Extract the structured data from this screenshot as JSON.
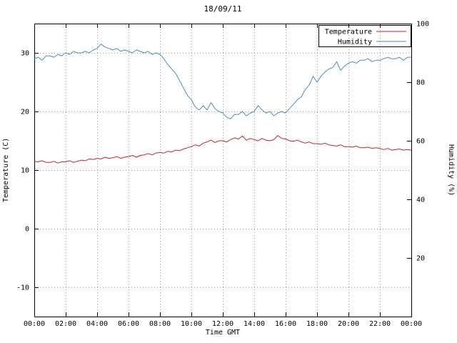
{
  "title": "18/09/11",
  "axes": {
    "x_label": "Time GMT",
    "y_left_label": "Temperature (C)",
    "y_right_label": "Humidity (%)",
    "x_tick_labels": [
      "00:00",
      "02:00",
      "04:00",
      "06:00",
      "08:00",
      "10:00",
      "12:00",
      "14:00",
      "16:00",
      "18:00",
      "20:00",
      "22:00",
      "00:00"
    ],
    "y_left_tick_values": [
      -10,
      0,
      10,
      20,
      30
    ],
    "y_right_tick_values": [
      20,
      40,
      60,
      80,
      100
    ],
    "y_left_range": [
      -15,
      35
    ],
    "y_right_range": [
      0,
      100
    ]
  },
  "legend": {
    "position": "top-right",
    "box": true,
    "entries": [
      "Temperature",
      "Humidity"
    ]
  },
  "chart_data": {
    "type": "line",
    "title": "18/09/11",
    "xlabel": "Time GMT",
    "grid": true,
    "x_hours_start": 0,
    "x_hours_end": 24,
    "sample_interval_minutes": 15,
    "series": [
      {
        "name": "Temperature",
        "axis": "left",
        "ylabel": "Temperature (C)",
        "ylim": [
          -15,
          35
        ],
        "color": "#cc2222",
        "values": [
          11.5,
          11.4,
          11.6,
          11.3,
          11.3,
          11.5,
          11.2,
          11.4,
          11.4,
          11.6,
          11.3,
          11.5,
          11.7,
          11.6,
          11.9,
          11.8,
          12.0,
          11.9,
          12.2,
          12.0,
          12.1,
          12.3,
          12.0,
          12.2,
          12.3,
          12.5,
          12.2,
          12.5,
          12.6,
          12.8,
          12.6,
          12.9,
          13.0,
          12.9,
          13.2,
          13.1,
          13.4,
          13.3,
          13.6,
          13.8,
          14.0,
          14.3,
          14.1,
          14.6,
          14.8,
          15.1,
          14.7,
          15.0,
          15.0,
          14.8,
          15.2,
          15.5,
          15.3,
          15.8,
          15.1,
          15.4,
          15.2,
          15.0,
          15.4,
          15.1,
          15.0,
          15.2,
          15.9,
          15.4,
          15.3,
          15.0,
          14.9,
          15.1,
          14.8,
          14.6,
          14.8,
          14.5,
          14.5,
          14.4,
          14.6,
          14.3,
          14.2,
          14.1,
          14.3,
          14.0,
          14.0,
          13.9,
          14.1,
          13.8,
          13.8,
          13.9,
          13.7,
          13.8,
          13.7,
          13.5,
          13.7,
          13.4,
          13.5,
          13.6,
          13.4,
          13.5,
          13.4
        ]
      },
      {
        "name": "Humidity",
        "axis": "right",
        "ylabel": "Humidity (%)",
        "ylim": [
          0,
          100
        ],
        "color": "#4a8cc4",
        "values": [
          88,
          88.5,
          87.5,
          89,
          89,
          88.5,
          89.5,
          89,
          90,
          89.5,
          90.5,
          90,
          90,
          90.5,
          90,
          91,
          91.5,
          93,
          92,
          91.5,
          91,
          91.5,
          90.5,
          91,
          90.5,
          90,
          91,
          90.5,
          90,
          90.5,
          89.5,
          90,
          89.5,
          88,
          86,
          84.5,
          83,
          80.5,
          78,
          75.5,
          74,
          71.5,
          70.5,
          72,
          70.5,
          73,
          71,
          70,
          69.5,
          68,
          67.5,
          69,
          69,
          70,
          68.5,
          69.5,
          70,
          72,
          70.5,
          69.5,
          70,
          68.5,
          69.5,
          70,
          69.5,
          71,
          72.5,
          74,
          75,
          77.5,
          79,
          82,
          80,
          82,
          83.5,
          84.5,
          85,
          87,
          84,
          85.5,
          86.5,
          87,
          86.5,
          87.5,
          87.5,
          88,
          87,
          87.5,
          87.5,
          88,
          88.5,
          88,
          88,
          88.5,
          87.5,
          88.5,
          88.5
        ]
      }
    ]
  }
}
